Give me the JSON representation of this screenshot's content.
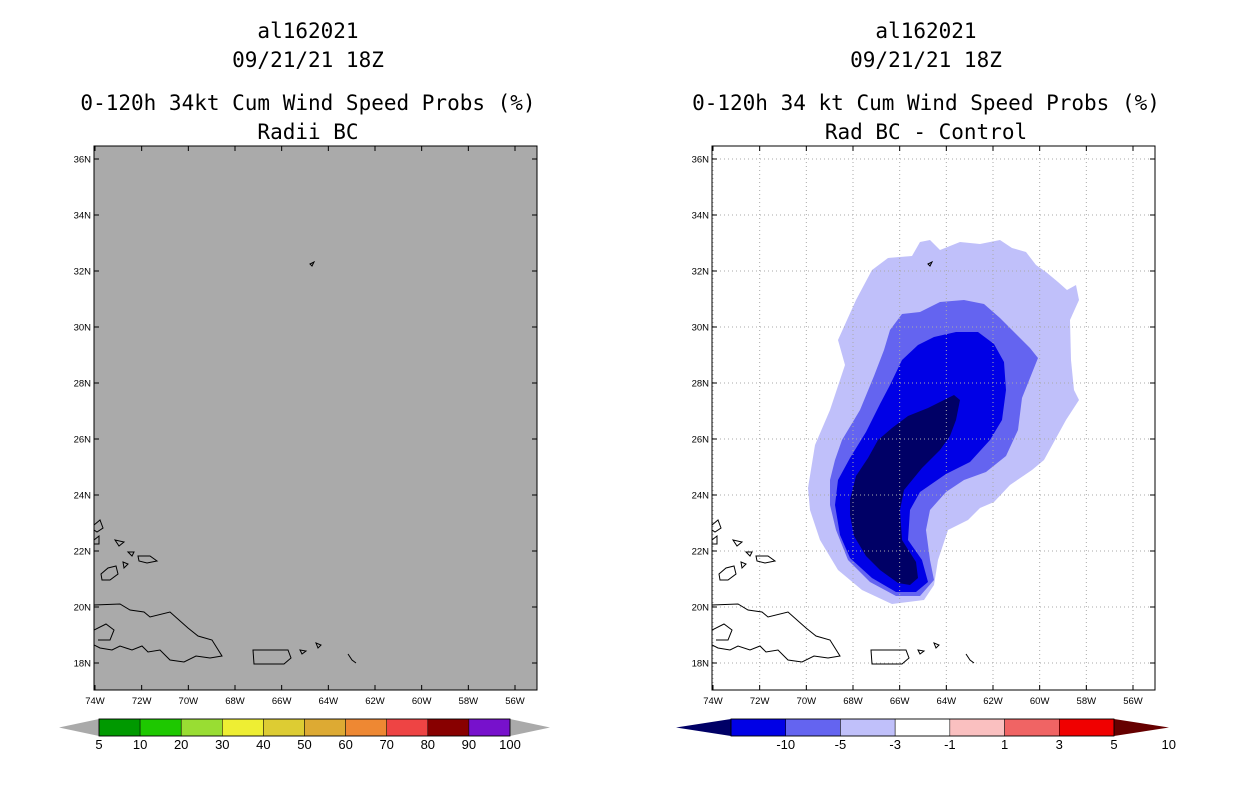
{
  "chart_data": [
    {
      "type": "contour-map",
      "storm_id": "al162021",
      "datetime": "09/21/21 18Z",
      "title": "0-120h 34kt Cum Wind Speed Probs (%)",
      "subtitle": "Radii BC",
      "x_ticks": [
        "74W",
        "72W",
        "70W",
        "68W",
        "66W",
        "64W",
        "62W",
        "60W",
        "58W",
        "56W"
      ],
      "y_ticks": [
        "18N",
        "20N",
        "22N",
        "24N",
        "26N",
        "28N",
        "30N",
        "32N",
        "34N",
        "36N"
      ],
      "xlim": [
        -74,
        -55
      ],
      "ylim": [
        17,
        36.5
      ],
      "field": "uniform (no contours; shaded gray)",
      "colorbar": {
        "labels": [
          "5",
          "10",
          "20",
          "30",
          "40",
          "50",
          "60",
          "70",
          "80",
          "90",
          "100"
        ],
        "colors": [
          "#009900",
          "#1ec800",
          "#99dd33",
          "#eeee33",
          "#ddcc33",
          "#ddaa33",
          "#ee8833",
          "#ee4444",
          "#880000",
          "#7711cc"
        ],
        "ends": [
          "#aaaaaa",
          "#aaaaaa"
        ]
      }
    },
    {
      "type": "contour-map",
      "storm_id": "al162021",
      "datetime": "09/21/21 18Z",
      "title": "0-120h 34 kt Cum Wind Speed Probs (%)",
      "subtitle": "Rad BC - Control",
      "x_ticks": [
        "74W",
        "72W",
        "70W",
        "68W",
        "66W",
        "64W",
        "62W",
        "60W",
        "58W",
        "56W"
      ],
      "y_ticks": [
        "18N",
        "20N",
        "22N",
        "24N",
        "26N",
        "28N",
        "30N",
        "32N",
        "34N",
        "36N"
      ],
      "xlim": [
        -74,
        -55
      ],
      "ylim": [
        17,
        36.5
      ],
      "grid": true,
      "field": "negative difference region centered near 66W 25N, minimum below -10",
      "colorbar": {
        "labels": [
          "-10",
          "-5",
          "-3",
          "-1",
          "1",
          "3",
          "5",
          "10"
        ],
        "colors": [
          "#0000e6",
          "#6464f0",
          "#c0c0fa",
          "#ffffff",
          "#fac0c0",
          "#f06464",
          "#f00000"
        ],
        "ends": [
          "#000066",
          "#660000"
        ]
      }
    }
  ]
}
